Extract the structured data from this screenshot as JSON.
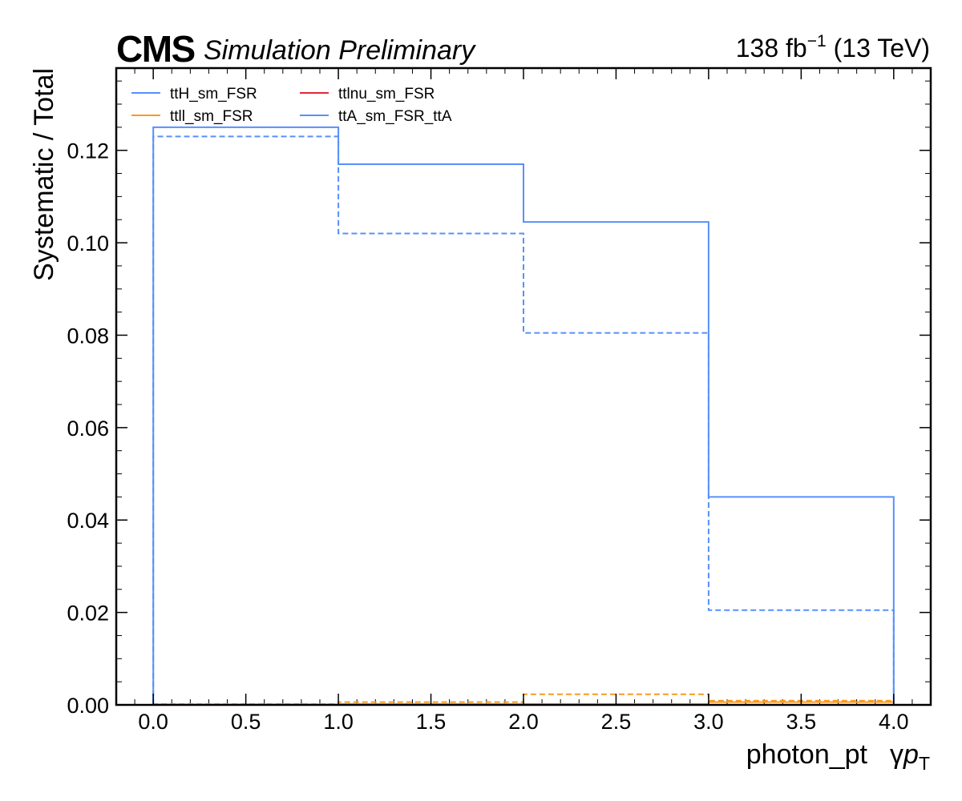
{
  "header": {
    "cms": "CMS",
    "subtitle": "Simulation Preliminary",
    "lumi_value": "138 fb",
    "lumi_exp": "−1",
    "energy": "(13 TeV)"
  },
  "colors": {
    "blue": "#5790fc",
    "orange": "#f89c20",
    "red": "#e42536"
  },
  "chart_data": {
    "type": "line",
    "drawstyle": "step-histogram",
    "xlabel": "photon_pt   γp_T",
    "xlabel_main": "photon_pt",
    "xlabel_gamma": "γ",
    "xlabel_p": "p",
    "xlabel_sub": "T",
    "ylabel": "Systematic / Total",
    "xlim": [
      -0.2,
      4.2
    ],
    "ylim": [
      0,
      0.1378
    ],
    "xticks": [
      0.0,
      0.5,
      1.0,
      1.5,
      2.0,
      2.5,
      3.0,
      3.5,
      4.0
    ],
    "xtick_labels": [
      "0.0",
      "0.5",
      "1.0",
      "1.5",
      "2.0",
      "2.5",
      "3.0",
      "3.5",
      "4.0"
    ],
    "yticks": [
      0.0,
      0.02,
      0.04,
      0.06,
      0.08,
      0.1,
      0.12
    ],
    "ytick_labels": [
      "0.00",
      "0.02",
      "0.04",
      "0.06",
      "0.08",
      "0.10",
      "0.12"
    ],
    "bin_edges": [
      0,
      1,
      2,
      3,
      4
    ],
    "legend_position": "top-left",
    "legend_columns": 2,
    "series": [
      {
        "name": "ttH_sm_FSR",
        "color": "#5790fc",
        "style": "solid",
        "values": [
          0.0,
          0.0,
          0.0,
          0.0
        ]
      },
      {
        "name": "ttH_sm_FSR",
        "color": "#5790fc",
        "style": "dashed",
        "values": [
          0.0,
          0.0,
          0.0,
          0.0
        ]
      },
      {
        "name": "ttll_sm_FSR",
        "color": "#f89c20",
        "style": "solid",
        "values": [
          0.0001,
          0.0002,
          0.0002,
          0.0006
        ]
      },
      {
        "name": "ttll_sm_FSR",
        "color": "#f89c20",
        "style": "dashed",
        "values": [
          0.0002,
          0.0006,
          0.0023,
          0.0009
        ]
      },
      {
        "name": "ttlnu_sm_FSR",
        "color": "#e42536",
        "style": "solid",
        "values": [
          0.0,
          0.0,
          0.0,
          0.0
        ]
      },
      {
        "name": "ttlnu_sm_FSR",
        "color": "#e42536",
        "style": "dashed",
        "values": [
          0.0,
          0.0,
          0.0,
          0.0
        ]
      },
      {
        "name": "ttA_sm_FSR_ttA",
        "color": "#5790fc",
        "style": "solid",
        "values": [
          0.125,
          0.117,
          0.1045,
          0.045
        ]
      },
      {
        "name": "ttA_sm_FSR_ttA",
        "color": "#5790fc",
        "style": "dashed",
        "values": [
          0.123,
          0.102,
          0.0805,
          0.0205
        ]
      }
    ],
    "legend": [
      {
        "label": "ttH_sm_FSR",
        "color": "#5790fc"
      },
      {
        "label": "ttlnu_sm_FSR",
        "color": "#e42536"
      },
      {
        "label": "ttll_sm_FSR",
        "color": "#f89c20"
      },
      {
        "label": "ttA_sm_FSR_ttA",
        "color": "#5790fc"
      }
    ]
  }
}
